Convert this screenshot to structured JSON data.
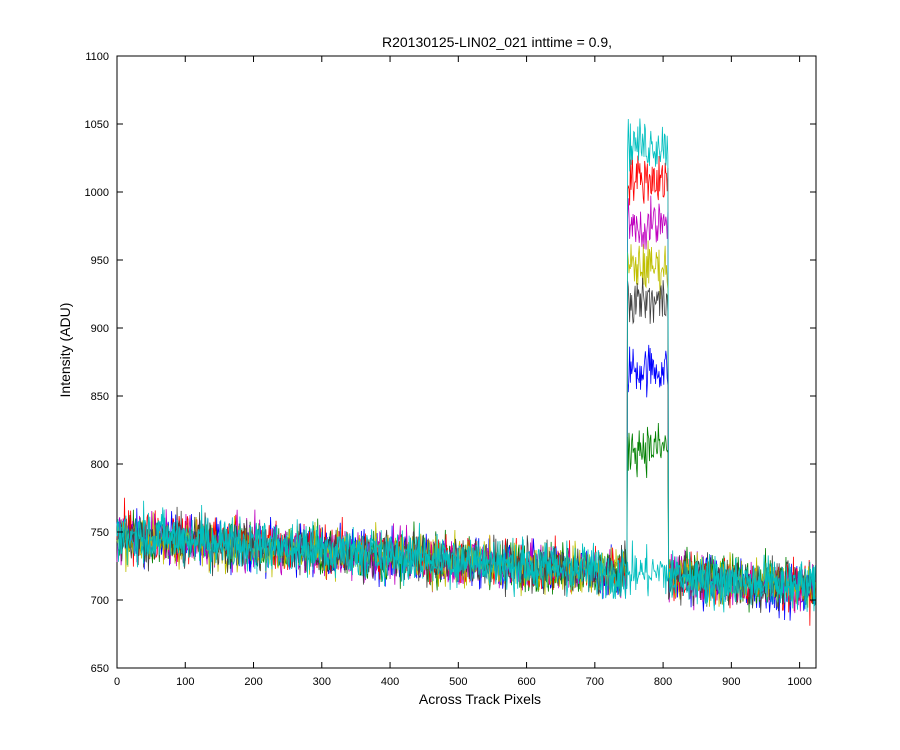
{
  "chart_data": {
    "type": "line",
    "title": "R20130125-LIN02_021 inttime = 0.9,",
    "xlabel": "Across Track Pixels",
    "ylabel": "Intensity (ADU)",
    "xlim": [
      0,
      1024
    ],
    "ylim": [
      650,
      1100
    ],
    "xticks": [
      0,
      100,
      200,
      300,
      400,
      500,
      600,
      700,
      800,
      900,
      1000
    ],
    "yticks": [
      650,
      700,
      750,
      800,
      850,
      900,
      950,
      1000,
      1050,
      1100
    ],
    "grid": false,
    "legend": "none",
    "x_start": 0,
    "x_end": 1023,
    "colors": [
      "#0000ff",
      "#008000",
      "#ff0000",
      "#00bfbf",
      "#bf00bf",
      "#bfbf00",
      "#404040",
      "#00bfbf"
    ],
    "series": [
      {
        "color": "#0000ff",
        "baseline_start": 748,
        "baseline_end": 706,
        "peak_start": 748,
        "peak_end": 807,
        "peak_level": 870,
        "noise": 9
      },
      {
        "color": "#008000",
        "baseline_start": 747,
        "baseline_end": 710,
        "peak_start": 748,
        "peak_end": 807,
        "peak_level": 812,
        "noise": 9
      },
      {
        "color": "#ff0000",
        "baseline_start": 750,
        "baseline_end": 708,
        "peak_start": 748,
        "peak_end": 807,
        "peak_level": 1010,
        "noise": 9
      },
      {
        "color": "#bf00bf",
        "baseline_start": 747,
        "baseline_end": 709,
        "peak_start": 748,
        "peak_end": 807,
        "peak_level": 975,
        "noise": 9
      },
      {
        "color": "#bfbf00",
        "baseline_start": 746,
        "baseline_end": 710,
        "peak_start": 748,
        "peak_end": 807,
        "peak_level": 945,
        "noise": 9
      },
      {
        "color": "#404040",
        "baseline_start": 747,
        "baseline_end": 709,
        "peak_start": 748,
        "peak_end": 807,
        "peak_level": 920,
        "noise": 9
      },
      {
        "color": "#00bfbf",
        "baseline_start": 748,
        "baseline_end": 708,
        "peak_start": 748,
        "peak_end": 807,
        "peak_level": 1035,
        "noise": 9
      },
      {
        "color": "#00bfbf",
        "baseline_start": 749,
        "baseline_end": 710,
        "peak_start": 748,
        "peak_end": 807,
        "peak_level": 720,
        "noise": 9
      }
    ]
  }
}
